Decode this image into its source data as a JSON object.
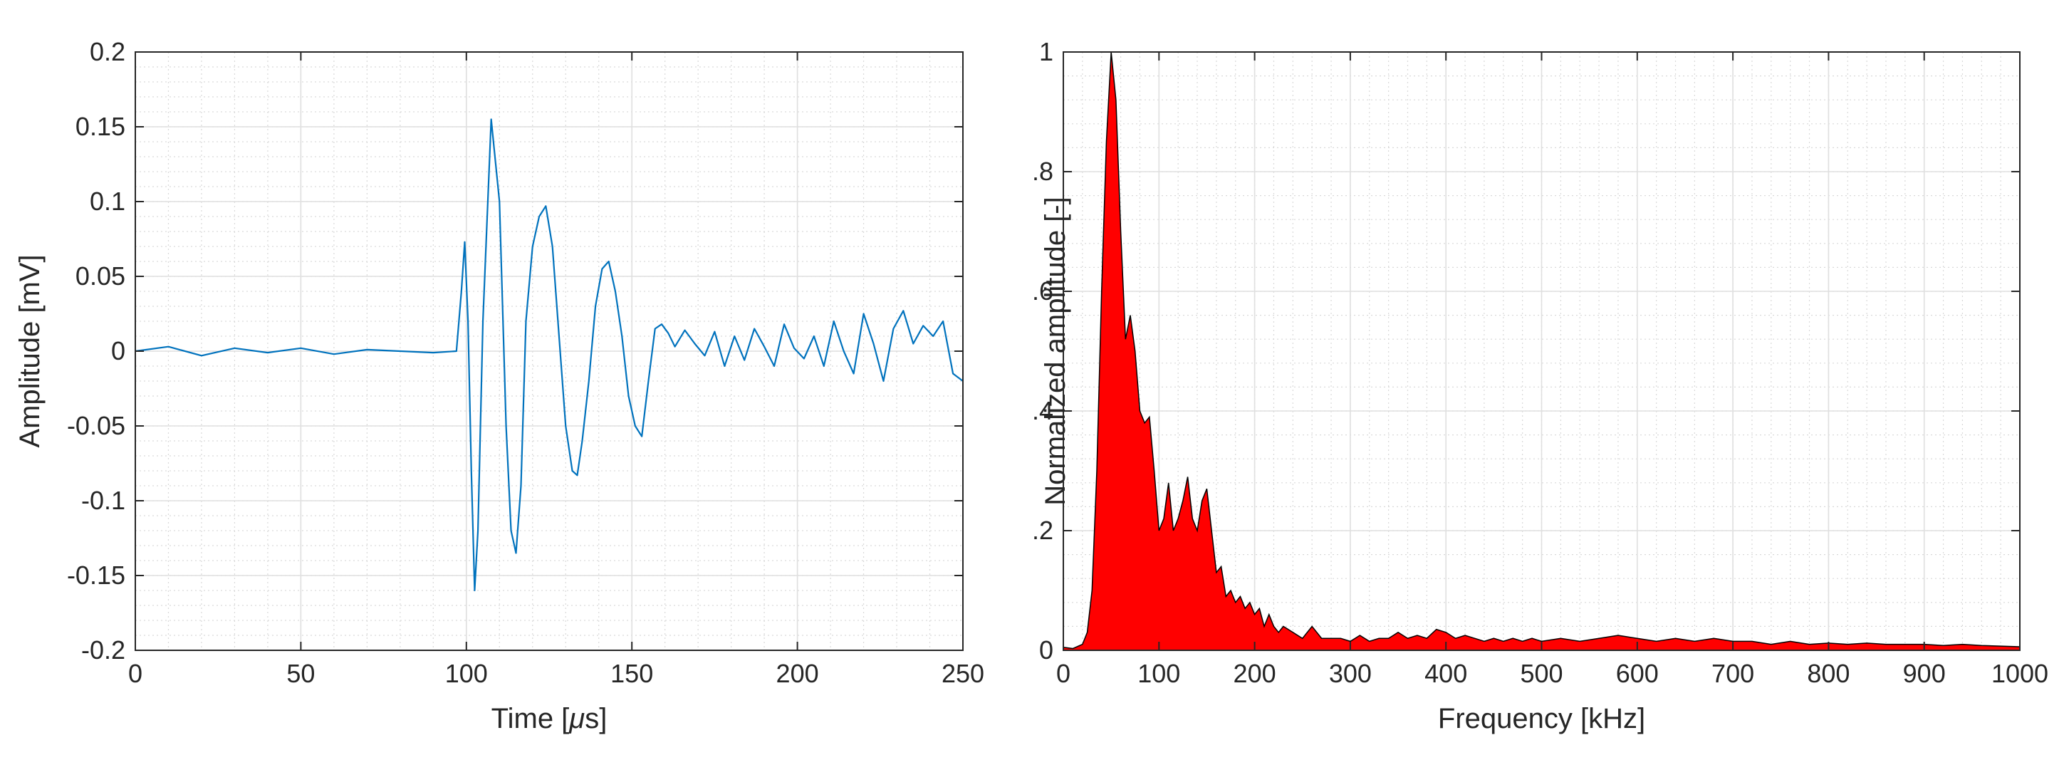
{
  "chart_data": [
    {
      "type": "line",
      "xlabel": "Time [",
      "xlabel_symbol": "μ",
      "xlabel_unit": "s]",
      "ylabel": "Amplitude [mV]",
      "xlim": [
        0,
        250
      ],
      "ylim": [
        -0.2,
        0.2
      ],
      "x_ticks": [
        0,
        50,
        100,
        150,
        200,
        250
      ],
      "x_tick_labels": [
        "0",
        "50",
        "100",
        "150",
        "200",
        "250"
      ],
      "y_ticks": [
        -0.2,
        -0.15,
        -0.1,
        -0.05,
        0,
        0.05,
        0.1,
        0.15,
        0.2
      ],
      "y_tick_labels": [
        "-0.2",
        "-0.15",
        "-0.1",
        "-0.05",
        "0",
        "0.05",
        "0.1",
        "0.15",
        "0.2"
      ],
      "grid": "on",
      "minor_grid": "on",
      "line_color": "#0072BD",
      "series": [
        {
          "x": [
            0,
            10,
            20,
            30,
            40,
            50,
            60,
            70,
            80,
            90,
            97,
            98.5,
            99.5,
            100.5,
            101.5,
            102.5,
            103.5,
            105,
            107.5,
            110,
            112,
            113.5,
            115,
            116.5,
            118,
            120,
            122,
            124,
            126,
            128,
            130,
            132,
            133.5,
            135,
            137,
            139,
            141,
            143,
            145,
            147,
            149,
            151,
            153,
            155,
            157,
            159,
            161,
            163,
            166,
            169,
            172,
            175,
            178,
            181,
            184,
            187,
            190,
            193,
            196,
            199,
            202,
            205,
            208,
            211,
            214,
            217,
            220,
            223,
            226,
            229,
            232,
            235,
            238,
            241,
            244,
            247,
            250
          ],
          "values": [
            0,
            0.003,
            -0.003,
            0.002,
            -0.001,
            0.002,
            -0.002,
            0.001,
            0,
            -0.001,
            0,
            0.04,
            0.073,
            0.02,
            -0.08,
            -0.16,
            -0.12,
            0.02,
            0.155,
            0.1,
            -0.05,
            -0.12,
            -0.135,
            -0.09,
            0.02,
            0.07,
            0.09,
            0.097,
            0.07,
            0.01,
            -0.05,
            -0.08,
            -0.083,
            -0.06,
            -0.02,
            0.03,
            0.055,
            0.06,
            0.04,
            0.01,
            -0.03,
            -0.05,
            -0.057,
            -0.02,
            0.015,
            0.018,
            0.012,
            0.003,
            0.014,
            0.005,
            -0.003,
            0.013,
            -0.01,
            0.01,
            -0.006,
            0.015,
            0.003,
            -0.01,
            0.018,
            0.002,
            -0.005,
            0.01,
            -0.01,
            0.02,
            0,
            -0.015,
            0.025,
            0.005,
            -0.02,
            0.015,
            0.027,
            0.005,
            0.017,
            0.01,
            0.02,
            -0.015,
            -0.02
          ]
        }
      ]
    },
    {
      "type": "area",
      "xlabel": "Frequency [kHz]",
      "ylabel": "Normalized amplitude [-]",
      "xlim": [
        0,
        1000
      ],
      "ylim": [
        0,
        1
      ],
      "x_ticks": [
        0,
        100,
        200,
        300,
        400,
        500,
        600,
        700,
        800,
        900,
        1000
      ],
      "x_tick_labels": [
        "0",
        "100",
        "200",
        "300",
        "400",
        "500",
        "600",
        "700",
        "800",
        "900",
        "1000"
      ],
      "y_ticks": [
        0,
        0.2,
        0.4,
        0.6,
        0.8,
        1
      ],
      "y_tick_labels": [
        "0",
        "0.2",
        "0.4",
        "0.6",
        "0.8",
        "1"
      ],
      "grid": "on",
      "minor_grid": "on",
      "fill_color": "#FF0000",
      "edge_color": "#000000",
      "series": [
        {
          "x": [
            0,
            10,
            20,
            25,
            30,
            35,
            40,
            45,
            50,
            55,
            60,
            65,
            70,
            75,
            80,
            85,
            90,
            95,
            100,
            105,
            110,
            115,
            120,
            125,
            130,
            135,
            140,
            145,
            150,
            155,
            160,
            165,
            170,
            175,
            180,
            185,
            190,
            195,
            200,
            205,
            210,
            215,
            220,
            225,
            230,
            240,
            250,
            260,
            270,
            280,
            290,
            300,
            310,
            320,
            330,
            340,
            350,
            360,
            370,
            380,
            390,
            400,
            410,
            420,
            430,
            440,
            450,
            460,
            470,
            480,
            490,
            500,
            520,
            540,
            560,
            580,
            600,
            620,
            640,
            660,
            680,
            700,
            720,
            740,
            760,
            780,
            800,
            820,
            840,
            860,
            880,
            900,
            920,
            940,
            960,
            980,
            1000
          ],
          "values": [
            0.005,
            0.003,
            0.01,
            0.03,
            0.1,
            0.3,
            0.6,
            0.85,
            1.0,
            0.92,
            0.7,
            0.52,
            0.56,
            0.5,
            0.4,
            0.38,
            0.39,
            0.3,
            0.2,
            0.22,
            0.28,
            0.2,
            0.22,
            0.25,
            0.29,
            0.22,
            0.2,
            0.25,
            0.27,
            0.2,
            0.13,
            0.14,
            0.09,
            0.1,
            0.08,
            0.09,
            0.07,
            0.08,
            0.06,
            0.07,
            0.04,
            0.06,
            0.04,
            0.03,
            0.04,
            0.03,
            0.02,
            0.04,
            0.02,
            0.02,
            0.02,
            0.015,
            0.025,
            0.015,
            0.02,
            0.02,
            0.03,
            0.02,
            0.025,
            0.02,
            0.035,
            0.03,
            0.02,
            0.025,
            0.02,
            0.015,
            0.02,
            0.015,
            0.02,
            0.015,
            0.02,
            0.015,
            0.02,
            0.015,
            0.02,
            0.025,
            0.02,
            0.015,
            0.02,
            0.015,
            0.02,
            0.015,
            0.015,
            0.01,
            0.015,
            0.01,
            0.012,
            0.01,
            0.012,
            0.01,
            0.01,
            0.01,
            0.008,
            0.01,
            0.008,
            0.007,
            0.006
          ]
        }
      ]
    }
  ]
}
